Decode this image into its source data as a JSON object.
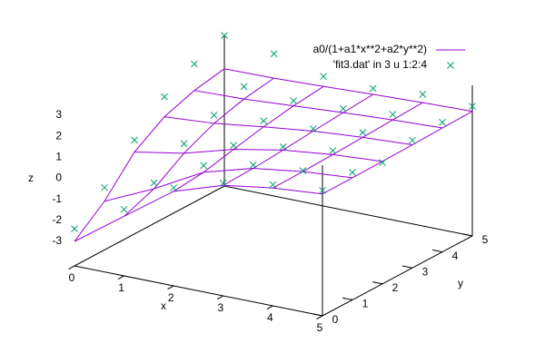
{
  "chart_data": {
    "type": "surface3d",
    "xlabel": "x",
    "ylabel": "y",
    "zlabel": "z",
    "xlim": [
      0,
      5
    ],
    "ylim": [
      0,
      5
    ],
    "zlim": [
      -3,
      3
    ],
    "xticks": [
      0,
      1,
      2,
      3,
      4,
      5
    ],
    "yticks": [
      0,
      1,
      2,
      3,
      4,
      5
    ],
    "zticks": [
      -3,
      -2,
      -1,
      0,
      1,
      2,
      3
    ],
    "legend": "top-right",
    "series": [
      {
        "name": "a0/(1+a1*x**2+a2*y**2)",
        "color": "#9400d3",
        "style": "surface",
        "x": [
          0,
          1,
          2,
          3,
          4,
          5
        ],
        "y": [
          0,
          1,
          2,
          3,
          4,
          5
        ],
        "z": [
          [
            -3,
            -1.33,
            0.33,
            1.09,
            1.44,
            1.63
          ],
          [
            -1.85,
            -0.78,
            0.48,
            1.14,
            1.46,
            1.64
          ],
          [
            -0.27,
            0.15,
            0.81,
            1.25,
            1.51,
            1.66
          ],
          [
            0.65,
            0.81,
            1.12,
            1.39,
            1.57,
            1.69
          ],
          [
            1.14,
            1.21,
            1.36,
            1.51,
            1.64,
            1.73
          ],
          [
            1.41,
            1.44,
            1.52,
            1.62,
            1.7,
            1.76
          ]
        ]
      },
      {
        "name": "'fit3.dat' in 3 u 1:2:4",
        "color": "#009e73",
        "style": "points",
        "x": [
          0,
          1,
          2,
          3,
          4,
          5,
          0,
          1,
          2,
          3,
          4,
          5,
          0,
          1,
          2,
          3,
          4,
          5,
          0,
          1,
          2,
          3,
          4,
          5,
          0,
          1,
          2,
          3,
          4,
          5,
          0,
          1,
          2,
          3,
          4,
          5
        ],
        "y": [
          0,
          0,
          0,
          0,
          0,
          0,
          1,
          1,
          1,
          1,
          1,
          1,
          2,
          2,
          2,
          2,
          2,
          2,
          3,
          3,
          3,
          3,
          3,
          3,
          4,
          4,
          4,
          4,
          4,
          4,
          5,
          5,
          5,
          5,
          5,
          5
        ],
        "z": [
          -2.4,
          -1.0,
          0.5,
          1.2,
          1.6,
          1.8,
          -1.2,
          -0.5,
          0.8,
          1.3,
          1.5,
          1.9,
          0.3,
          0.6,
          1.0,
          1.4,
          1.7,
          1.6,
          1.6,
          1.2,
          1.4,
          1.5,
          1.8,
          1.9,
          2.4,
          1.8,
          1.6,
          1.7,
          1.9,
          2.0,
          3.0,
          2.6,
          2.0,
          1.9,
          2.1,
          2.0
        ]
      }
    ]
  }
}
